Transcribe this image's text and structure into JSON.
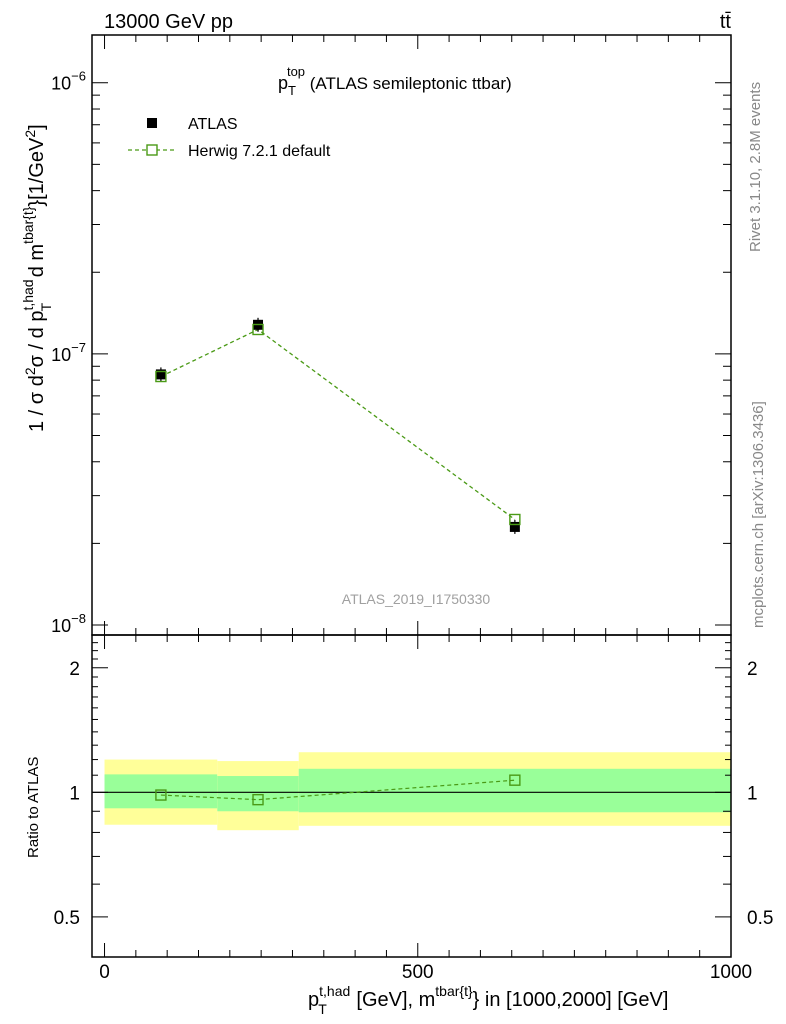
{
  "header": {
    "left_label": "13000 GeV pp",
    "right_label": "tt̄"
  },
  "side": {
    "rivet": "Rivet 3.1.10,  2.8M events",
    "mcplots": "mcplots.cern.ch [arXiv:1306.3436]"
  },
  "chart_data": [
    {
      "type": "scatter",
      "title_main": "p",
      "title_sub": "T",
      "title_sup": "top",
      "title_rest": " (ATLAS semileptonic ttbar)",
      "ylabel": "1 / σ d²σ / d p_T^{t,had} d m^{tbar{t}} [1/GeV²]",
      "ylabel_parts": {
        "a": "1 / σ d",
        "a2": "2",
        "b": "σ / d p",
        "b_sup": "t,had",
        "b_sub": "T",
        "c": " d m",
        "c_sup": "tbar{t}",
        "d": "}[1/GeV",
        "d2": "2",
        "e": "]"
      },
      "yscale": "log",
      "ylim": [
        1e-08,
        1.5e-06
      ],
      "xlim": [
        -20,
        1000
      ],
      "y_major_ticks": [
        {
          "value": 1e-08,
          "base": "10",
          "exp": "−8"
        },
        {
          "value": 1e-07,
          "base": "10",
          "exp": "−7"
        },
        {
          "value": 1e-06,
          "base": "10",
          "exp": "−6"
        }
      ],
      "watermark": "ATLAS_2019_I1750330",
      "legend_position": "top-left",
      "series": [
        {
          "name": "ATLAS",
          "marker": "filled-square",
          "color": "#000000",
          "x": [
            90,
            245,
            655
          ],
          "y": [
            8.4e-08,
            1.28e-07,
            2.3e-08
          ]
        },
        {
          "name": "Herwig 7.2.1 default",
          "marker": "open-square",
          "color": "#4a9a16",
          "linestyle": "dashed",
          "x": [
            90,
            245,
            655
          ],
          "y": [
            8.25e-08,
            1.23e-07,
            2.45e-08
          ]
        }
      ]
    },
    {
      "type": "scatter",
      "ylabel": "Ratio to ATLAS",
      "xlabel_parts": {
        "a": "p",
        "a_sup": "t,had",
        "a_sub": "T",
        "b": " [GeV], m",
        "b_sup": "tbar{t}",
        "c": "} in [1000,2000] [GeV]"
      },
      "yscale": "log",
      "ylim": [
        0.4,
        2.4
      ],
      "xlim": [
        -20,
        1000
      ],
      "y_tick_labels": [
        {
          "value": 0.5,
          "label": "0.5"
        },
        {
          "value": 1,
          "label": "1"
        },
        {
          "value": 2,
          "label": "2"
        }
      ],
      "x_tick_labels": [
        {
          "value": 0,
          "label": "0"
        },
        {
          "value": 500,
          "label": "500"
        },
        {
          "value": 1000,
          "label": "1000"
        }
      ],
      "bands": [
        {
          "x0": 0,
          "x1": 180,
          "inner": [
            0.915,
            1.105
          ],
          "outer": [
            0.835,
            1.2
          ]
        },
        {
          "x0": 180,
          "x1": 310,
          "inner": [
            0.9,
            1.095
          ],
          "outer": [
            0.81,
            1.19
          ]
        },
        {
          "x0": 310,
          "x1": 1000,
          "inner": [
            0.895,
            1.14
          ],
          "outer": [
            0.83,
            1.25
          ]
        }
      ],
      "band_colors": {
        "inner": "#99ff99",
        "outer": "#ffff99"
      },
      "series": [
        {
          "name": "Herwig 7.2.1 default",
          "color": "#4a9a16",
          "x": [
            90,
            245,
            655
          ],
          "y": [
            0.985,
            0.96,
            1.07
          ]
        }
      ]
    }
  ]
}
